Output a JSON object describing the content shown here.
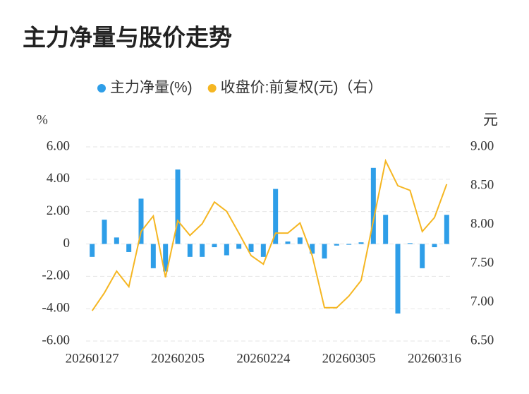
{
  "chart_data": {
    "type": "bar_line",
    "title": "主力净量与股价走势",
    "y_label": "%",
    "y2_label": "元",
    "categories": [
      "20260127",
      null,
      null,
      null,
      null,
      null,
      null,
      "20260205",
      null,
      null,
      null,
      null,
      null,
      null,
      "20260224",
      null,
      null,
      null,
      null,
      null,
      null,
      "20260305",
      null,
      null,
      null,
      null,
      null,
      null,
      "20260316",
      null
    ],
    "series": [
      {
        "name": "主力净量(%)",
        "type": "bar",
        "color": "#2e9ee8",
        "values": [
          -0.8,
          1.5,
          0.4,
          -0.5,
          2.8,
          -1.5,
          -1.7,
          4.6,
          -0.8,
          -0.8,
          -0.2,
          -0.7,
          -0.3,
          -0.5,
          -0.8,
          3.4,
          0.15,
          0.4,
          -0.6,
          -0.9,
          -0.1,
          -0.05,
          0.1,
          4.7,
          1.8,
          -4.3,
          0.05,
          -1.5,
          -0.2,
          1.8
        ]
      },
      {
        "name": "收盘价:前复权(元)（右）",
        "type": "line",
        "axis": "y2",
        "color": "#f5b622",
        "values": [
          6.89,
          7.12,
          7.4,
          7.2,
          7.91,
          8.11,
          7.32,
          8.05,
          7.86,
          8.01,
          8.29,
          8.17,
          7.89,
          7.6,
          7.49,
          7.89,
          7.89,
          8.02,
          7.6,
          6.93,
          6.93,
          7.08,
          7.28,
          8.05,
          8.82,
          8.5,
          8.44,
          7.91,
          8.09,
          8.52
        ]
      }
    ],
    "ylim": [
      -6,
      6
    ],
    "yticks": [
      {
        "value": 6,
        "label": "6.00"
      },
      {
        "value": 4,
        "label": "4.00"
      },
      {
        "value": 2,
        "label": "2.00"
      },
      0,
      {
        "value": -2,
        "label": "-2.00"
      },
      {
        "value": -4,
        "label": "-4.00"
      },
      {
        "value": -6,
        "label": "-6.00"
      }
    ],
    "y2lim": [
      6.5,
      9
    ],
    "y2ticks": [
      {
        "value": 9,
        "label": "9.00"
      },
      {
        "value": 8.5,
        "label": "8.50"
      },
      {
        "value": 8,
        "label": "8.00"
      },
      {
        "value": 7.5,
        "label": "7.50"
      },
      {
        "value": 7,
        "label": "7.00"
      },
      {
        "value": 6.5,
        "label": "6.50"
      }
    ],
    "grid": true,
    "legend": "top"
  }
}
